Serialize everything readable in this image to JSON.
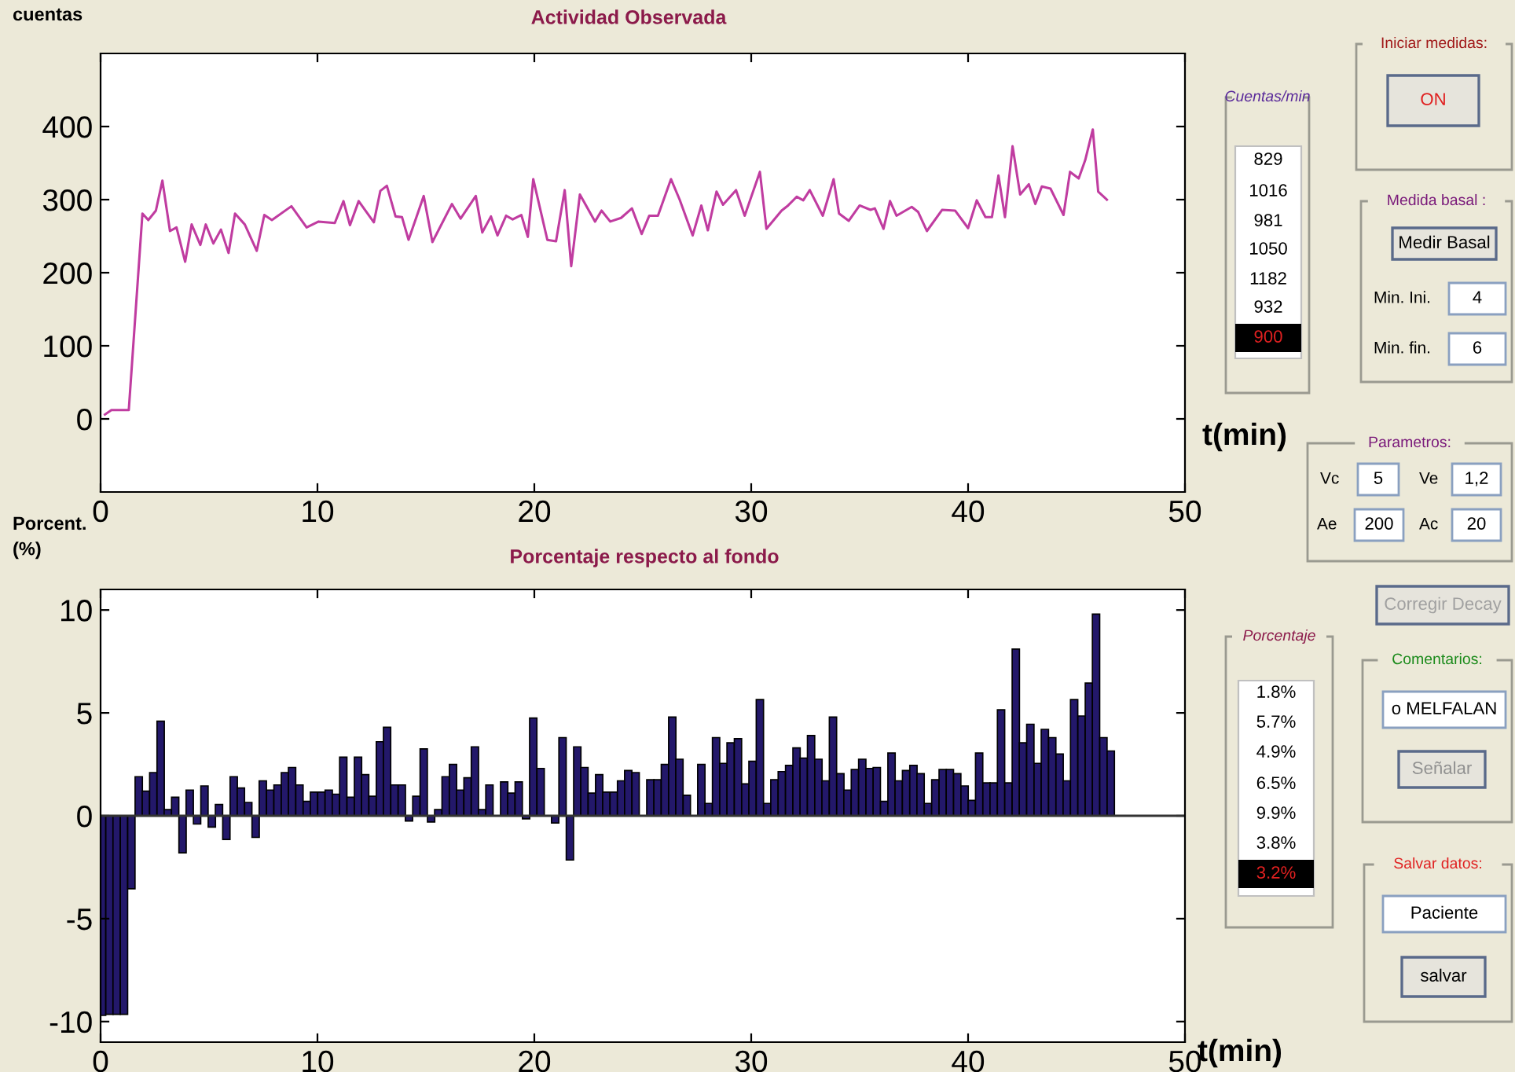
{
  "chart_data": [
    {
      "type": "line",
      "title": "Actividad Observada",
      "ylabel": "cuentas",
      "xlabel": "t(min)",
      "xlim": [
        0,
        50
      ],
      "ylim": [
        -100,
        500
      ],
      "xticks": [
        0,
        10,
        20,
        30,
        40,
        50
      ],
      "yticks": [
        0,
        100,
        200,
        300,
        400
      ],
      "grid": false,
      "marker": "none",
      "line_style": "solid",
      "series": [
        {
          "color": "#c03ca0",
          "x": [
            0.2,
            0.5,
            1.0,
            1.3,
            1.93,
            2.2,
            2.55,
            2.85,
            3.2,
            3.5,
            3.9,
            4.2,
            4.6,
            4.85,
            5.2,
            5.55,
            5.9,
            6.2,
            6.65,
            7.2,
            7.55,
            7.9,
            8.8,
            9.5,
            10.05,
            10.8,
            11.2,
            11.5,
            11.9,
            12.6,
            12.9,
            13.2,
            13.6,
            13.9,
            14.2,
            14.9,
            15.3,
            16.2,
            16.6,
            17.3,
            17.6,
            18.0,
            18.3,
            18.7,
            19.0,
            19.4,
            19.7,
            19.95,
            20.6,
            21.0,
            21.4,
            21.7,
            22.1,
            22.8,
            23.1,
            23.5,
            24.0,
            24.5,
            24.95,
            25.3,
            25.7,
            26.3,
            26.7,
            27.3,
            27.7,
            28.0,
            28.4,
            28.7,
            29.3,
            29.7,
            30.4,
            30.7,
            31.4,
            31.7,
            32.1,
            32.4,
            32.7,
            33.3,
            33.8,
            34.05,
            34.5,
            35.0,
            35.5,
            35.7,
            36.1,
            36.4,
            36.7,
            37.4,
            37.7,
            38.1,
            38.8,
            39.4,
            40.0,
            40.4,
            40.8,
            41.1,
            41.4,
            41.7,
            42.05,
            42.4,
            42.8,
            43.1,
            43.4,
            43.8,
            44.4,
            44.7,
            45.1,
            45.4,
            45.75,
            46.0,
            46.4
          ],
          "values": [
            6,
            12,
            12,
            12,
            281,
            272,
            285,
            326,
            257,
            262,
            215,
            266,
            238,
            266,
            240,
            259,
            227,
            281,
            266,
            230,
            279,
            272,
            291,
            262,
            270,
            268,
            298,
            265,
            298,
            269,
            312,
            319,
            277,
            276,
            245,
            305,
            242,
            294,
            274,
            305,
            255,
            277,
            251,
            278,
            273,
            279,
            249,
            328,
            245,
            243,
            313,
            209,
            307,
            270,
            285,
            270,
            275,
            288,
            253,
            278,
            278,
            328,
            300,
            251,
            292,
            258,
            311,
            293,
            313,
            278,
            338,
            260,
            285,
            292,
            304,
            299,
            313,
            278,
            328,
            281,
            271,
            292,
            286,
            288,
            260,
            298,
            278,
            290,
            283,
            257,
            286,
            285,
            261,
            299,
            276,
            276,
            333,
            276,
            373,
            307,
            321,
            294,
            318,
            315,
            279,
            338,
            329,
            354,
            396,
            311,
            300
          ]
        }
      ]
    },
    {
      "type": "bar",
      "title": "Porcentaje respecto al fondo",
      "ylabel": "Porcent.\n(%)",
      "xlabel": "t(min)",
      "xlim": [
        0,
        50
      ],
      "ylim": [
        -11,
        11
      ],
      "xticks": [
        0,
        10,
        20,
        30,
        40,
        50
      ],
      "yticks": [
        -10,
        -5,
        0,
        5,
        10
      ],
      "grid": false,
      "ref_lines": [
        {
          "axis": "y",
          "value": 0,
          "color": "#333333"
        }
      ],
      "series": [
        {
          "color": "#23186a",
          "x": [
            0.07,
            0.41,
            0.74,
            1.08,
            1.42,
            1.76,
            2.09,
            2.43,
            2.77,
            3.1,
            3.44,
            3.78,
            4.11,
            4.45,
            4.79,
            5.13,
            5.46,
            5.8,
            6.14,
            6.47,
            6.81,
            7.15,
            7.48,
            7.82,
            8.16,
            8.5,
            8.83,
            9.17,
            9.51,
            9.84,
            10.18,
            10.52,
            10.85,
            11.19,
            11.53,
            11.87,
            12.2,
            12.54,
            12.88,
            13.21,
            13.55,
            13.89,
            14.22,
            14.56,
            14.9,
            15.24,
            15.57,
            15.91,
            16.25,
            16.58,
            16.92,
            17.26,
            17.59,
            17.93,
            18.27,
            18.61,
            18.94,
            19.28,
            19.62,
            19.95,
            20.29,
            20.63,
            20.96,
            21.3,
            21.64,
            21.98,
            22.31,
            22.65,
            22.99,
            23.32,
            23.66,
            24.0,
            24.33,
            24.67,
            25.01,
            25.35,
            25.68,
            26.02,
            26.36,
            26.69,
            27.03,
            27.37,
            27.7,
            28.04,
            28.38,
            28.72,
            29.05,
            29.39,
            29.73,
            30.06,
            30.4,
            30.74,
            31.07,
            31.41,
            31.75,
            32.09,
            32.42,
            32.76,
            33.1,
            33.43,
            33.77,
            34.11,
            34.44,
            34.78,
            35.12,
            35.46,
            35.79,
            36.13,
            36.47,
            36.8,
            37.14,
            37.48,
            37.81,
            38.15,
            38.49,
            38.83,
            39.16,
            39.5,
            39.84,
            40.17,
            40.51,
            40.85,
            41.18,
            41.52,
            41.86,
            42.2,
            42.53,
            42.87,
            43.21,
            43.54,
            43.88,
            44.22,
            44.55,
            44.89,
            45.23,
            45.57,
            45.9,
            46.24,
            46.58
          ],
          "values": [
            -9.7,
            -9.65,
            -9.65,
            -9.65,
            -3.55,
            1.9,
            1.2,
            2.1,
            4.6,
            0.3,
            0.9,
            -1.8,
            1.25,
            -0.4,
            1.45,
            -0.55,
            0.55,
            -1.15,
            1.9,
            1.35,
            0.65,
            -1.05,
            1.7,
            1.25,
            1.5,
            2.1,
            2.35,
            1.5,
            0.7,
            1.15,
            1.15,
            1.25,
            1.05,
            2.85,
            0.9,
            2.85,
            2.0,
            0.95,
            3.6,
            4.3,
            1.5,
            1.5,
            -0.25,
            0.95,
            3.25,
            -0.3,
            0.3,
            1.9,
            2.5,
            1.25,
            1.85,
            3.35,
            0.3,
            1.5,
            null,
            1.65,
            1.1,
            1.65,
            -0.15,
            4.75,
            2.3,
            null,
            -0.35,
            3.8,
            -2.15,
            3.35,
            2.35,
            1.1,
            2.0,
            1.15,
            1.15,
            1.7,
            2.2,
            2.1,
            null,
            1.75,
            1.75,
            2.5,
            4.8,
            2.75,
            1.0,
            null,
            2.5,
            0.6,
            3.8,
            2.55,
            3.55,
            3.75,
            1.55,
            2.65,
            5.65,
            0.6,
            1.75,
            2.15,
            2.45,
            3.3,
            2.8,
            3.9,
            2.75,
            1.7,
            4.8,
            2.05,
            1.25,
            2.25,
            2.75,
            2.3,
            2.35,
            0.7,
            3.05,
            1.7,
            2.2,
            2.45,
            2.05,
            0.6,
            1.75,
            2.25,
            2.25,
            2.05,
            1.45,
            0.75,
            3.05,
            1.6,
            1.6,
            5.15,
            1.6,
            8.1,
            3.55,
            4.45,
            2.55,
            4.2,
            3.8,
            3.0,
            1.7,
            5.65,
            4.85,
            6.45,
            9.8,
            3.8,
            3.15
          ]
        }
      ]
    },
    {
      "type": "other",
      "annotations": [
        "Cuentas/min",
        "829",
        "1016",
        "981",
        "1050",
        "1182",
        "932",
        "900",
        "Iniciar medidas:",
        "ON",
        "Medida basal :",
        "Medir Basal",
        "Min. Ini.",
        "4",
        "Min. fin.",
        "6",
        "Parametros:",
        "Vc",
        "5",
        "Ve",
        "1,2",
        "Ae",
        "200",
        "Ac",
        "20",
        "Corregir Decay",
        "Porcentaje",
        "1.8%",
        "5.7%",
        "4.9%",
        "6.5%",
        "9.9%",
        "3.8%",
        "3.2%",
        "Comentarios:",
        "o MELFALAN",
        "Señalar",
        "Salvar datos:",
        "Paciente",
        "salvar"
      ]
    }
  ]
}
